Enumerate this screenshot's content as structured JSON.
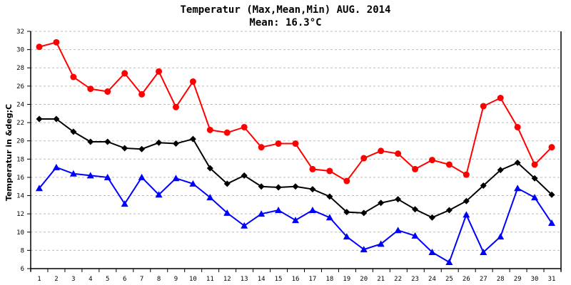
{
  "chart_data": {
    "type": "line",
    "title": "Temperatur (Max,Mean,Min) AUG. 2014",
    "subtitle": "Mean: 16.3°C",
    "xlabel": "",
    "ylabel": "Temperatur in &deg;C",
    "ylim": [
      6,
      32
    ],
    "yticks": [
      "6",
      "8",
      "10",
      "12",
      "14",
      "16",
      "18",
      "20",
      "22",
      "24",
      "26",
      "28",
      "30",
      "32"
    ],
    "grid": true,
    "categories": [
      "1",
      "2",
      "3",
      "4",
      "5",
      "6",
      "7",
      "8",
      "9",
      "10",
      "11",
      "12",
      "13",
      "14",
      "15",
      "16",
      "17",
      "18",
      "19",
      "20",
      "21",
      "22",
      "23",
      "24",
      "25",
      "26",
      "27",
      "28",
      "29",
      "30",
      "31"
    ],
    "series": [
      {
        "name": "Max",
        "color": "#ff0000",
        "marker": "circle",
        "values": [
          30.3,
          30.8,
          27.0,
          25.7,
          25.4,
          27.4,
          25.1,
          27.6,
          23.7,
          26.5,
          21.2,
          20.9,
          21.5,
          19.3,
          19.7,
          19.7,
          16.9,
          16.7,
          15.6,
          18.1,
          18.9,
          18.6,
          16.9,
          17.9,
          17.4,
          16.3,
          23.8,
          24.7,
          21.5,
          17.4,
          19.3
        ]
      },
      {
        "name": "Mean",
        "color": "#000000",
        "marker": "diamond",
        "values": [
          22.4,
          22.4,
          21.0,
          19.9,
          19.9,
          19.2,
          19.1,
          19.8,
          19.7,
          20.2,
          17.0,
          15.3,
          16.2,
          15.0,
          14.9,
          15.0,
          14.7,
          13.9,
          12.2,
          12.1,
          13.2,
          13.6,
          12.5,
          11.6,
          12.4,
          13.4,
          15.1,
          16.8,
          17.6,
          15.9,
          14.1
        ]
      },
      {
        "name": "Min",
        "color": "#0000ff",
        "marker": "triangle",
        "values": [
          14.8,
          17.1,
          16.4,
          16.2,
          16.0,
          13.1,
          16.0,
          14.1,
          15.9,
          15.3,
          13.8,
          12.1,
          10.7,
          12.0,
          12.4,
          11.3,
          12.4,
          11.6,
          9.5,
          8.1,
          8.7,
          10.2,
          9.6,
          7.8,
          6.7,
          11.9,
          7.8,
          9.5,
          14.8,
          13.8,
          11.0
        ]
      }
    ]
  }
}
